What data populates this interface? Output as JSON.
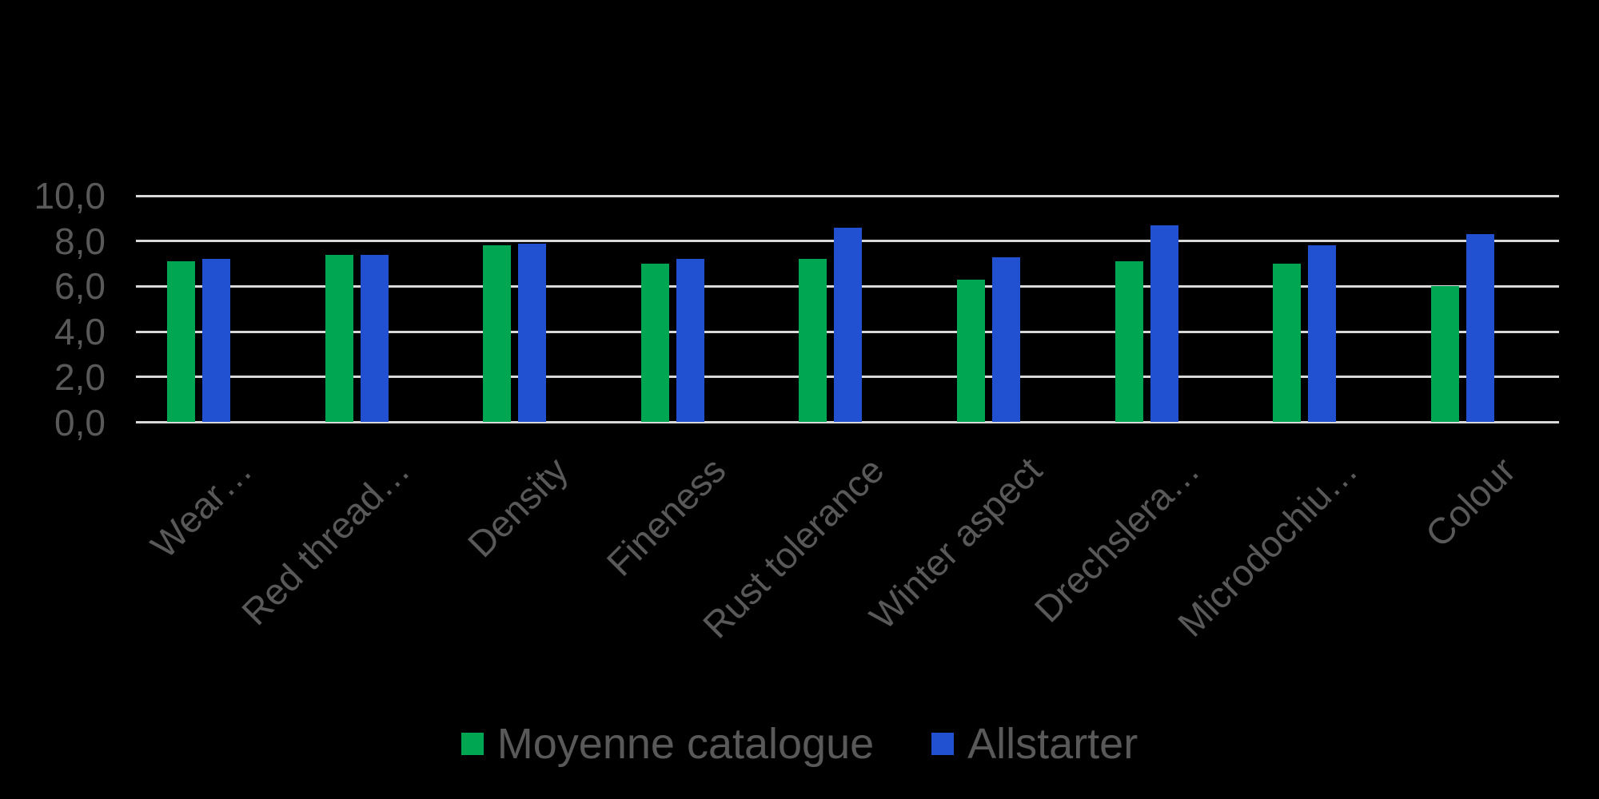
{
  "chart_data": {
    "type": "bar",
    "title": "",
    "xlabel": "",
    "ylabel": "",
    "background_color": "#000000",
    "gridline_color": "#D9D9D9",
    "text_color": "#595959",
    "grid": true,
    "legend_position": "bottom",
    "ylim": [
      0,
      10
    ],
    "ytick_values": [
      0,
      2,
      4,
      6,
      8,
      10
    ],
    "ytick_labels": [
      "0,0",
      "2,0",
      "4,0",
      "6,0",
      "8,0",
      "10,0"
    ],
    "categories": [
      "Wear…",
      "Red thread…",
      "Density",
      "Fineness",
      "Rust tolerance",
      "Winter aspect",
      "Drechslera…",
      "Microdochiu…",
      "Colour"
    ],
    "series": [
      {
        "name": "Moyenne catalogue",
        "color": "#00A651",
        "values": [
          7.1,
          7.4,
          7.8,
          7.0,
          7.2,
          6.3,
          7.1,
          7.0,
          6.0
        ]
      },
      {
        "name": "Allstarter",
        "color": "#2151D0",
        "values": [
          7.2,
          7.4,
          7.9,
          7.2,
          8.6,
          7.3,
          8.7,
          7.8,
          8.3
        ]
      }
    ]
  }
}
